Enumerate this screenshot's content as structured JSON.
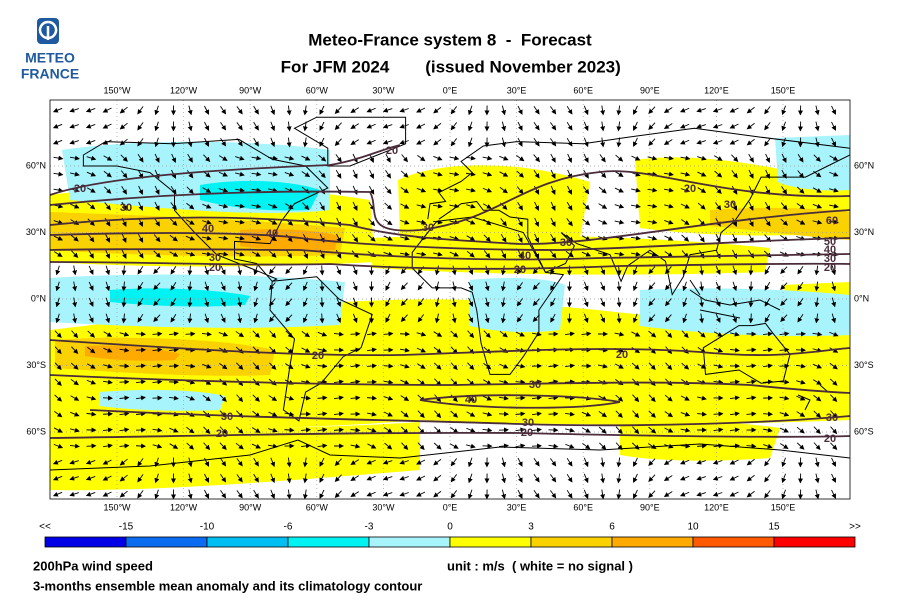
{
  "logo": {
    "line1": "METEO",
    "line2": "FRANCE"
  },
  "title": {
    "line1": "Meteo-France system 8  -  Forecast",
    "line2_left": "For JFM 2024",
    "line2_right": "(issued November 2023)"
  },
  "map": {
    "lon_labels": [
      "150°W",
      "120°W",
      "90°W",
      "60°W",
      "30°W",
      "0°E",
      "30°E",
      "60°E",
      "90°E",
      "120°E",
      "150°E"
    ],
    "lat_labels": [
      "60°N",
      "30°N",
      "0°N",
      "30°S",
      "60°S"
    ],
    "contour_labels": [
      "20",
      "20",
      "30",
      "40",
      "40",
      "30",
      "20",
      "30",
      "40",
      "20",
      "30",
      "50",
      "40",
      "30",
      "20",
      "60",
      "30",
      "20",
      "20",
      "20",
      "30",
      "40",
      "30",
      "20",
      "30",
      "20",
      "30",
      "20"
    ]
  },
  "colorbar": {
    "labels": [
      "<<",
      "-15",
      "-10",
      "-6",
      "-3",
      "0",
      "3",
      "6",
      "10",
      "15",
      ">>"
    ],
    "colors": [
      "#0000e6",
      "#0a6cf0",
      "#00bff2",
      "#00f2f2",
      "#a8f4fc",
      "#ffff00",
      "#fad200",
      "#ffaa00",
      "#ff5a00",
      "#ff0000"
    ]
  },
  "footer": {
    "variable": "200hPa wind speed",
    "unit": "unit : m/s  ( white = no signal )",
    "description": "3-months ensemble mean anomaly and its climatology contour"
  }
}
